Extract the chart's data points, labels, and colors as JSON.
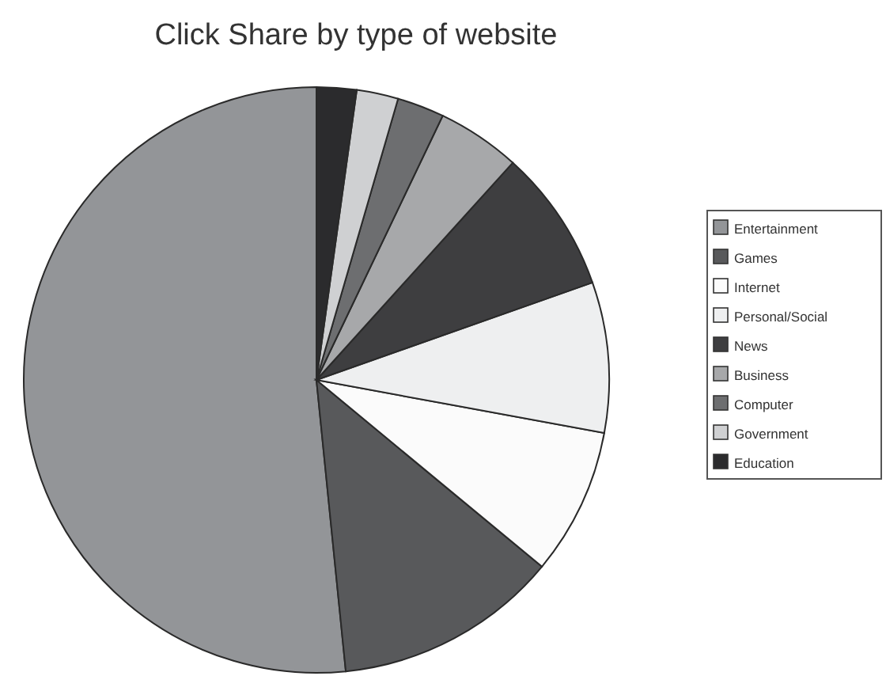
{
  "chart_data": {
    "type": "pie",
    "title": "Click Share by type of website",
    "categories": [
      "Entertainment",
      "Games",
      "Internet",
      "Personal/Social",
      "News",
      "Business",
      "Computer",
      "Government",
      "Education"
    ],
    "values": [
      51.6,
      12.4,
      8.1,
      8.3,
      7.9,
      4.6,
      2.6,
      2.3,
      2.2
    ],
    "colors": [
      "#939598",
      "#58595b",
      "#fbfbfb",
      "#eeeff0",
      "#3e3e40",
      "#a7a8aa",
      "#6d6e70",
      "#cfd0d2",
      "#2b2b2d"
    ],
    "legend": "right"
  }
}
